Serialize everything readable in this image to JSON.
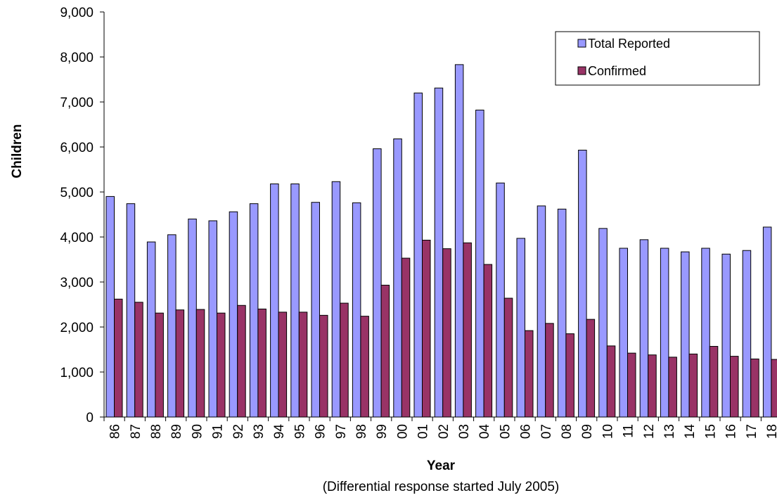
{
  "chart_data": {
    "type": "bar",
    "categories": [
      "86",
      "87",
      "88",
      "89",
      "90",
      "91",
      "92",
      "93",
      "94",
      "95",
      "96",
      "97",
      "98",
      "99",
      "00",
      "01",
      "02",
      "03",
      "04",
      "05",
      "06",
      "07",
      "08",
      "09",
      "10",
      "11",
      "12",
      "13",
      "14",
      "15",
      "16",
      "17",
      "18"
    ],
    "series": [
      {
        "name": "Total Reported",
        "color": "#9999ff",
        "values": [
          4900,
          4740,
          3890,
          4050,
          4400,
          4360,
          4560,
          4740,
          5180,
          5180,
          4770,
          5230,
          4760,
          5960,
          6180,
          7200,
          7310,
          7830,
          6820,
          5200,
          3970,
          4690,
          4620,
          5930,
          4190,
          3750,
          3940,
          3750,
          3670,
          3750,
          3620,
          3700,
          4220
        ]
      },
      {
        "name": "Confirmed",
        "color": "#993366",
        "values": [
          2620,
          2550,
          2310,
          2380,
          2390,
          2310,
          2480,
          2400,
          2330,
          2330,
          2260,
          2530,
          2240,
          2930,
          3530,
          3930,
          3740,
          3870,
          3390,
          2640,
          1920,
          2080,
          1850,
          2170,
          1580,
          1420,
          1380,
          1330,
          1400,
          1570,
          1350,
          1290,
          1280
        ]
      }
    ],
    "ylim": [
      0,
      9000
    ],
    "yticks": [
      0,
      {
        "value": 1000,
        "label": "1,000"
      },
      {
        "value": 2000,
        "label": "2,000"
      },
      {
        "value": 3000,
        "label": "3,000"
      },
      {
        "value": 4000,
        "label": "4,000"
      },
      {
        "value": 5000,
        "label": "5,000"
      },
      {
        "value": 6000,
        "label": "6,000"
      },
      {
        "value": 7000,
        "label": "7,000"
      },
      {
        "value": 8000,
        "label": "8,000"
      },
      {
        "value": 9000,
        "label": "9,000"
      }
    ],
    "x_label": "Year",
    "subtitle": "(Differential response started July 2005)",
    "y_label": "Children",
    "legend": "top-right"
  }
}
